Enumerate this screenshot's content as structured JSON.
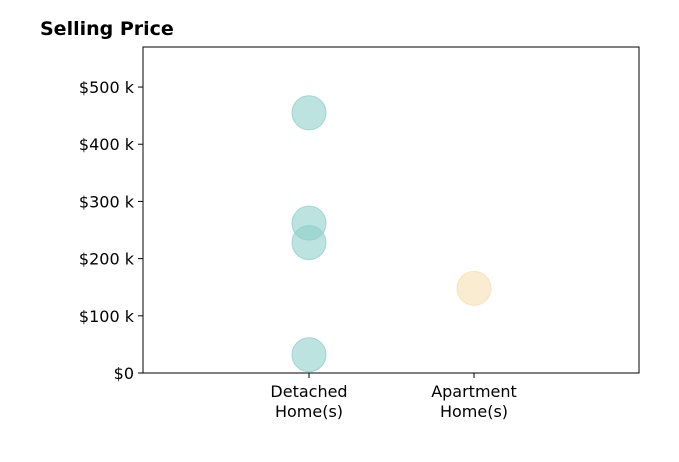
{
  "chart_data": {
    "type": "scatter",
    "title": "Selling Price",
    "categories": [
      "Detached\nHome(s)",
      "Apartment\nHome(s)"
    ],
    "y_ticks": [
      "$0",
      "$100 k",
      "$200 k",
      "$300 k",
      "$400 k",
      "$500 k"
    ],
    "y_tick_values": [
      0,
      100000,
      200000,
      300000,
      400000,
      500000
    ],
    "ylim": [
      0,
      570000
    ],
    "grid": false,
    "series": [
      {
        "category": "Detached\nHome(s)",
        "color": "#8ecfc9",
        "values": [
          455000,
          262000,
          228000,
          32000
        ]
      },
      {
        "category": "Apartment\nHome(s)",
        "color": "#f6dfb0",
        "values": [
          148000
        ]
      }
    ]
  }
}
